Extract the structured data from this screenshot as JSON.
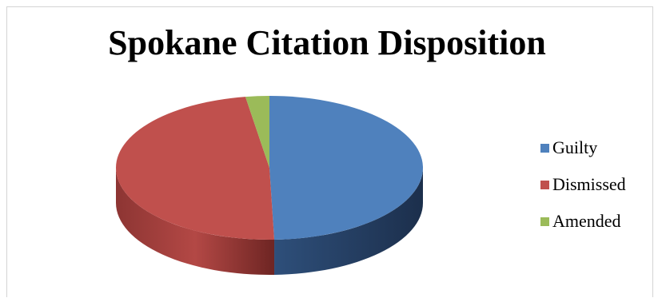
{
  "chart_data": {
    "type": "pie",
    "title": "Spokane Citation Disposition",
    "style": "3d",
    "legend_position": "right",
    "categories": [
      "Guilty",
      "Dismissed",
      "Amended"
    ],
    "values": [
      49.5,
      48.0,
      2.5
    ],
    "colors": [
      "#4f81bd",
      "#c0504d",
      "#9bbb59"
    ]
  }
}
